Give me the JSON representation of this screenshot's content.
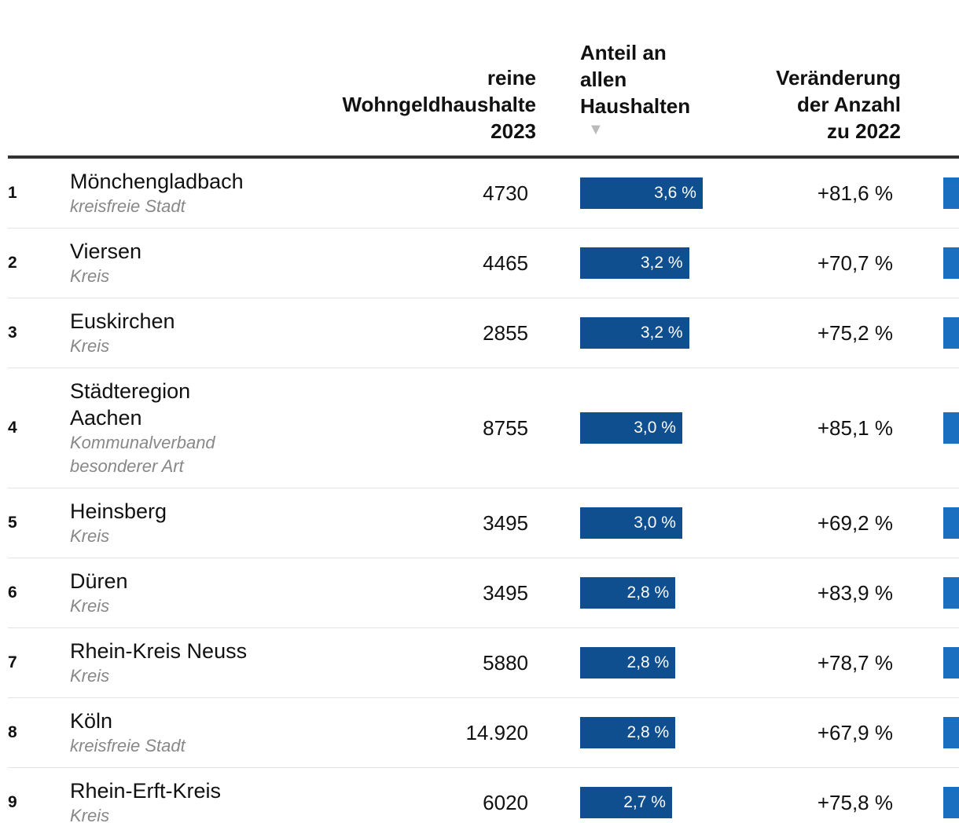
{
  "table": {
    "header": {
      "count": [
        "reine",
        "Wohngeldhaushalte",
        "2023"
      ],
      "share": [
        "Anteil an",
        "allen",
        "Haushalten"
      ],
      "change": [
        "Veränderung",
        "der Anzahl",
        "zu 2022"
      ]
    },
    "sort_arrow": "▼",
    "bar_color": "#0f4f8f",
    "rows": [
      {
        "rank": 1,
        "name": "Mönchengladbach",
        "kind": "kreisfreie Stadt",
        "count": 4730,
        "share": {
          "value": 3.6,
          "label": "3,6 %"
        },
        "change": {
          "value": 81.6,
          "label": "+81,6 %"
        }
      },
      {
        "rank": 2,
        "name": "Viersen",
        "kind": "Kreis",
        "count": 4465,
        "share": {
          "value": 3.2,
          "label": "3,2 %"
        },
        "change": {
          "value": 70.7,
          "label": "+70,7 %"
        }
      },
      {
        "rank": 3,
        "name": "Euskirchen",
        "kind": "Kreis",
        "count": 2855,
        "share": {
          "value": 3.2,
          "label": "3,2 %"
        },
        "change": {
          "value": 75.2,
          "label": "+75,2 %"
        }
      },
      {
        "rank": 4,
        "name": "Städteregion Aachen",
        "kind": "Kommunalverband besonderer Art",
        "count": 8755,
        "share": {
          "value": 3.0,
          "label": "3,0 %"
        },
        "change": {
          "value": 85.1,
          "label": "+85,1 %"
        }
      },
      {
        "rank": 5,
        "name": "Heinsberg",
        "kind": "Kreis",
        "count": 3495,
        "share": {
          "value": 3.0,
          "label": "3,0 %"
        },
        "change": {
          "value": 69.2,
          "label": "+69,2 %"
        }
      },
      {
        "rank": 6,
        "name": "Düren",
        "kind": "Kreis",
        "count": 3495,
        "share": {
          "value": 2.8,
          "label": "2,8 %"
        },
        "change": {
          "value": 83.9,
          "label": "+83,9 %"
        }
      },
      {
        "rank": 7,
        "name": "Rhein-Kreis Neuss",
        "kind": "Kreis",
        "count": 5880,
        "share": {
          "value": 2.8,
          "label": "2,8 %"
        },
        "change": {
          "value": 78.7,
          "label": "+78,7 %"
        }
      },
      {
        "rank": 8,
        "name": "Köln",
        "kind": "kreisfreie Stadt",
        "count": {
          "value": 14920,
          "label": "14.920"
        },
        "share": {
          "value": 2.8,
          "label": "2,8 %"
        },
        "change": {
          "value": 67.9,
          "label": "+67,9 %"
        }
      },
      {
        "rank": 9,
        "name": "Rhein-Erft-Kreis",
        "kind": "Kreis",
        "count": 6020,
        "share": {
          "value": 2.7,
          "label": "2,7 %"
        },
        "change": {
          "value": 75.8,
          "label": "+75,8 %"
        }
      }
    ]
  }
}
